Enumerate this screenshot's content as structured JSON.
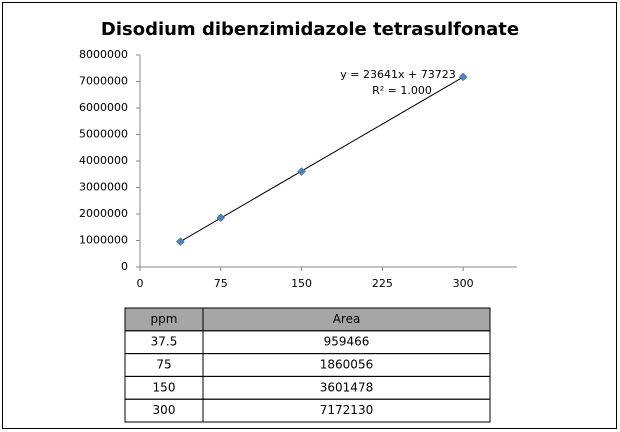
{
  "chart_data": {
    "type": "scatter",
    "title": "Disodium dibenzimidazole tetrasulfonate",
    "x": [
      37.5,
      75,
      150,
      300
    ],
    "values": [
      959466,
      1860056,
      3601478,
      7172130
    ],
    "color": "#4f81bd",
    "xlim": [
      0,
      350
    ],
    "xticks": [
      0,
      75,
      150,
      225,
      300
    ],
    "ylim": [
      0,
      8000000
    ],
    "yticks": [
      0,
      1000000,
      2000000,
      3000000,
      4000000,
      5000000,
      6000000,
      7000000,
      8000000
    ],
    "grid": false,
    "trendline": {
      "slope": 23641,
      "intercept": 73723,
      "equation": "y = 23641x + 73723",
      "r_squared": "R² = 1.000"
    }
  },
  "table": {
    "header": [
      "ppm",
      "Area"
    ]
  }
}
